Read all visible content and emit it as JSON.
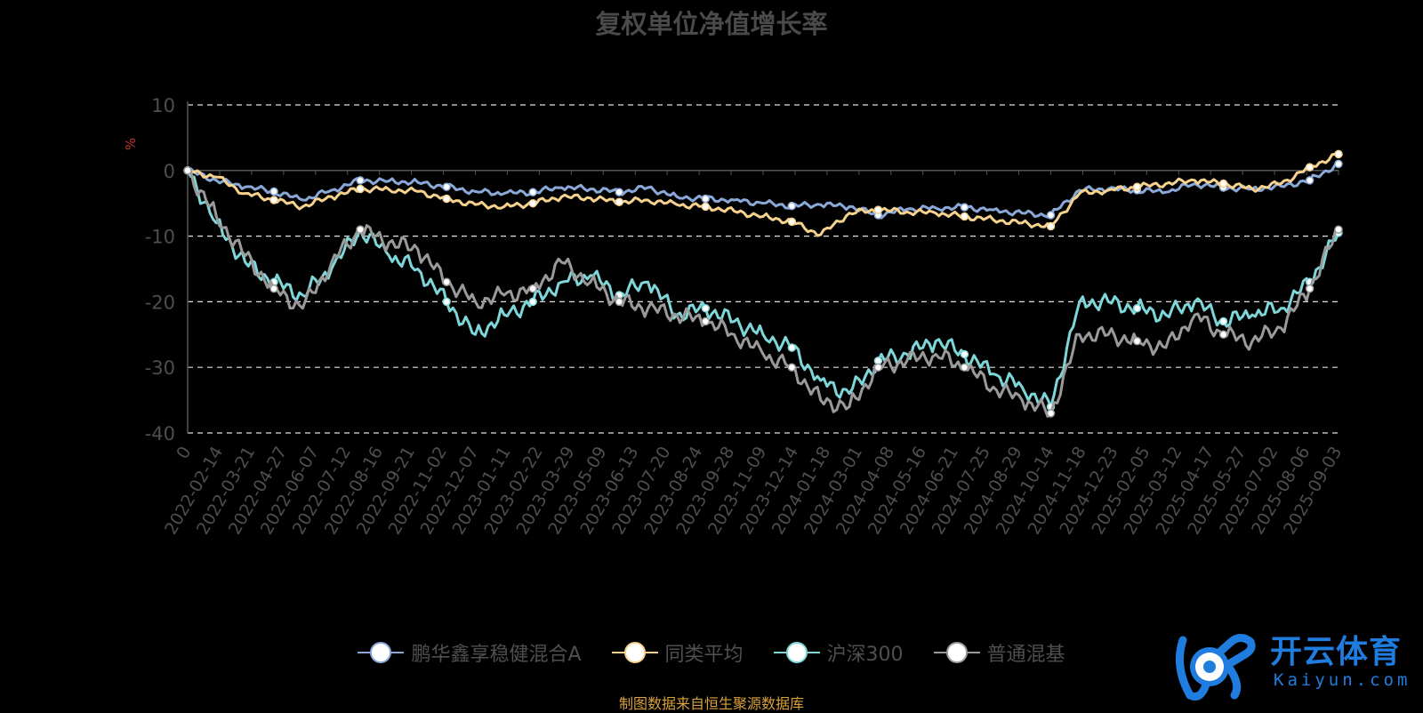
{
  "chart_data": {
    "type": "line",
    "title": "复权单位净值增长率",
    "ylabel": "%",
    "ylim": [
      -40,
      10
    ],
    "yticks": [
      10,
      0,
      -10,
      -20,
      -30,
      -40
    ],
    "grid": true,
    "legend_position": "bottom",
    "x_ticks": [
      "0",
      "2022-02-14",
      "2022-03-21",
      "2022-04-27",
      "2022-06-07",
      "2022-07-12",
      "2022-08-16",
      "2022-09-21",
      "2022-11-02",
      "2022-12-07",
      "2023-01-11",
      "2023-02-22",
      "2023-03-29",
      "2023-05-09",
      "2023-06-13",
      "2023-07-20",
      "2023-08-24",
      "2023-09-28",
      "2023-11-09",
      "2023-12-14",
      "2024-01-18",
      "2024-03-01",
      "2024-04-08",
      "2024-05-16",
      "2024-06-21",
      "2024-07-25",
      "2024-08-29",
      "2024-10-14",
      "2024-11-18",
      "2024-12-23",
      "2025-02-05",
      "2025-03-12",
      "2025-04-17",
      "2025-05-27",
      "2025-07-02",
      "2025-08-06",
      "2025-09-03"
    ],
    "series": [
      {
        "name": "鹏华鑫享稳健混合A",
        "color": "#8aa9d8",
        "values": [
          0,
          -1.5,
          -2.5,
          -3.2,
          -4.5,
          -3.0,
          -1.5,
          -1.6,
          -1.8,
          -2.5,
          -3.2,
          -3.5,
          -3.3,
          -2.6,
          -2.8,
          -3.3,
          -2.6,
          -4.0,
          -4.3,
          -4.5,
          -5.0,
          -5.4,
          -5.2,
          -5.5,
          -6.8,
          -5.9,
          -5.7,
          -5.6,
          -6.0,
          -6.5,
          -6.8,
          -3.0,
          -2.8,
          -3.0,
          -3.3,
          -2.0,
          -2.6,
          -2.8,
          -2.4,
          -1.5,
          1.0
        ]
      },
      {
        "name": "同类平均",
        "color": "#f6d28e",
        "values": [
          0,
          -1.0,
          -3.5,
          -4.5,
          -5.5,
          -4.0,
          -2.8,
          -2.9,
          -3.2,
          -4.3,
          -5.2,
          -5.5,
          -5.0,
          -4.0,
          -4.2,
          -4.8,
          -4.5,
          -5.2,
          -5.5,
          -6.2,
          -7.0,
          -7.8,
          -9.8,
          -6.5,
          -6.0,
          -6.3,
          -6.5,
          -7.0,
          -7.5,
          -8.0,
          -8.5,
          -3.5,
          -3.0,
          -2.5,
          -2.0,
          -1.5,
          -2.0,
          -2.8,
          -2.0,
          0.5,
          2.5
        ]
      },
      {
        "name": "沪深300",
        "color": "#7fd6d8",
        "values": [
          0,
          -8,
          -14,
          -17,
          -19,
          -15,
          -9,
          -13,
          -15,
          -20,
          -25,
          -22,
          -20,
          -17,
          -16,
          -19,
          -17,
          -22,
          -21,
          -23,
          -25,
          -27,
          -32,
          -34,
          -29,
          -28,
          -26,
          -28,
          -31,
          -33,
          -36,
          -20,
          -20,
          -21,
          -22,
          -20,
          -23,
          -22,
          -21,
          -17,
          -9.5
        ]
      },
      {
        "name": "普通混基",
        "color": "#9a9a9a",
        "values": [
          0,
          -7,
          -13,
          -18,
          -21,
          -14,
          -9,
          -11,
          -12,
          -17,
          -20,
          -19,
          -18,
          -14,
          -17,
          -20,
          -21,
          -22,
          -23,
          -25,
          -28,
          -30,
          -35,
          -36,
          -30,
          -29,
          -28,
          -30,
          -33,
          -35,
          -37,
          -25,
          -25,
          -26,
          -27,
          -22,
          -25,
          -26,
          -24,
          -18,
          -9.0
        ]
      }
    ]
  },
  "source_note": "制图数据来自恒生聚源数据库",
  "watermark": {
    "name": "开云体育",
    "sub": "Kaiyun.com"
  }
}
